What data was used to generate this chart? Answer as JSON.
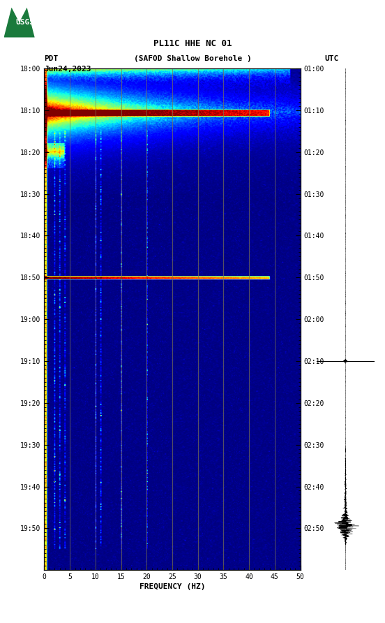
{
  "title_line1": "PL11C HHE NC 01",
  "title_line2": "(SAFOD Shallow Borehole )",
  "left_label": "PDT",
  "date_label": "Jun24,2023",
  "right_label": "UTC",
  "xlabel": "FREQUENCY (HZ)",
  "freq_min": 0,
  "freq_max": 50,
  "freq_ticks": [
    0,
    5,
    10,
    15,
    20,
    25,
    30,
    35,
    40,
    45,
    50
  ],
  "time_total_minutes": 120,
  "ytick_minutes": [
    0,
    10,
    20,
    30,
    40,
    50,
    60,
    70,
    80,
    90,
    100,
    110
  ],
  "left_ytick_labels": [
    "18:00",
    "18:10",
    "18:20",
    "18:30",
    "18:40",
    "18:50",
    "19:00",
    "19:10",
    "19:20",
    "19:30",
    "19:40",
    "19:50"
  ],
  "right_ytick_labels": [
    "01:00",
    "01:10",
    "01:20",
    "01:30",
    "01:40",
    "01:50",
    "02:00",
    "02:10",
    "02:20",
    "02:30",
    "02:40",
    "02:50"
  ],
  "fig_bg": "#ffffff",
  "vertical_lines_freq": [
    5,
    10,
    15,
    20,
    25,
    30,
    35,
    40,
    45
  ],
  "vertical_line_color": "#807850",
  "colormap": "jet"
}
